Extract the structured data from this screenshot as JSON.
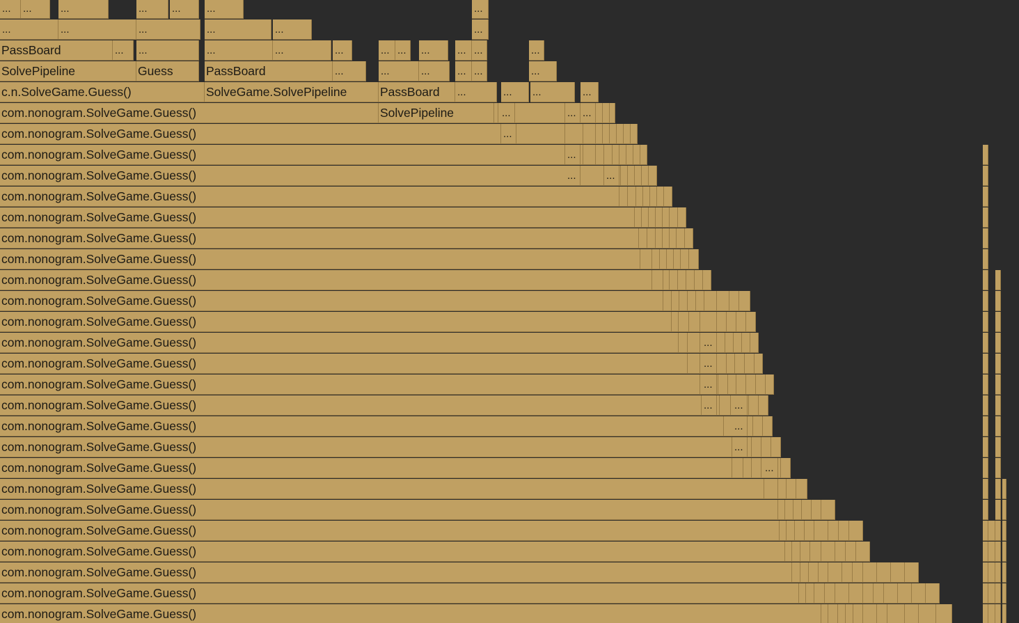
{
  "colors": {
    "background": "#2b2b2b",
    "frame_fill": "#c0a062",
    "frame_border": "#9a7d47",
    "frame_text": "#1d1a14"
  },
  "labels": {
    "guess": "com.nonogram.SolveGame.Guess()",
    "guess_short": "c.n.SolveGame.Guess()",
    "solve_pipeline_full": "SolveGame.SolvePipeline",
    "solve_pipeline": "SolvePipeline",
    "pass_board": "PassBoard",
    "guess_bare": "Guess",
    "ellipsis": "..."
  }
}
